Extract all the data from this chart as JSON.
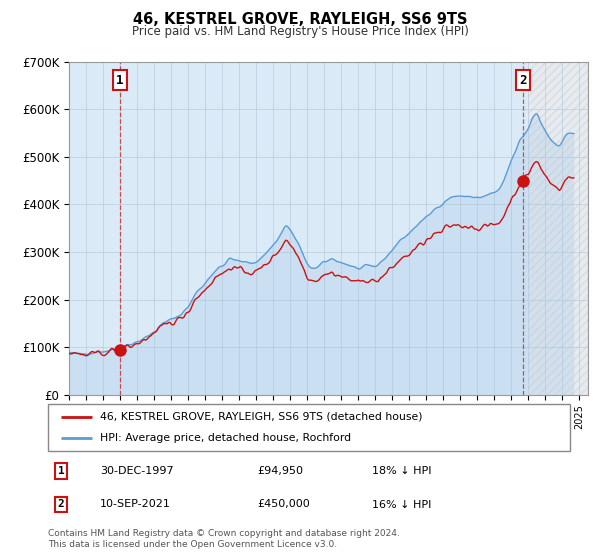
{
  "title": "46, KESTREL GROVE, RAYLEIGH, SS6 9TS",
  "subtitle": "Price paid vs. HM Land Registry's House Price Index (HPI)",
  "legend_line1": "46, KESTREL GROVE, RAYLEIGH, SS6 9TS (detached house)",
  "legend_line2": "HPI: Average price, detached house, Rochford",
  "footer": "Contains HM Land Registry data © Crown copyright and database right 2024.\nThis data is licensed under the Open Government Licence v3.0.",
  "hpi_color": "#5b9bd5",
  "hpi_fill_color": "#daeaf6",
  "price_color": "#cc1111",
  "annotation_color": "#cc1111",
  "bg_color": "#daeaf6",
  "plot_bg_color": "#daeaf6",
  "grid_color": "#b0c4d8",
  "hatch_color": "#b8cfe0",
  "ylim": [
    0,
    700000
  ],
  "yticks": [
    0,
    100000,
    200000,
    300000,
    400000,
    500000,
    600000,
    700000
  ],
  "ytick_labels": [
    "£0",
    "£100K",
    "£200K",
    "£300K",
    "£400K",
    "£500K",
    "£600K",
    "£700K"
  ],
  "sale1_x": 1997.99,
  "sale1_y": 94950,
  "sale2_x": 2021.7,
  "sale2_y": 450000,
  "hatch_start": 2022.0,
  "xmin": 1995.0,
  "xmax": 2025.5
}
